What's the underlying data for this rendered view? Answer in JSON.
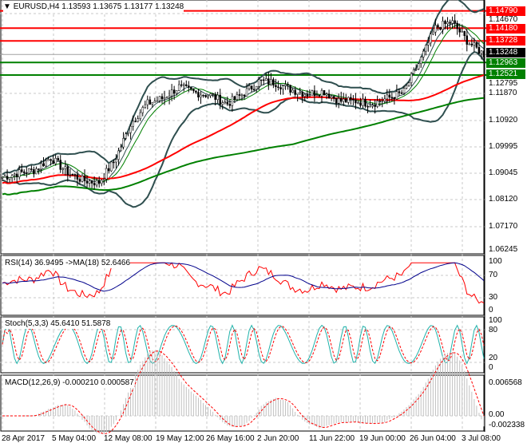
{
  "header": {
    "symbol": "EURUSD,H4",
    "ohlc": "1.13593 1.13675 1.13177 1.13248"
  },
  "price_axis": {
    "ticks": [
      "1.14670",
      "1.12795",
      "1.11870",
      "1.10920",
      "1.09995",
      "1.09045",
      "1.08120",
      "1.07170",
      "1.06245"
    ]
  },
  "price_tags": [
    {
      "value": "1.14790",
      "color": "#ff0000"
    },
    {
      "value": "1.14180",
      "color": "#ff0000"
    },
    {
      "value": "1.13728",
      "color": "#ff0000"
    },
    {
      "value": "1.13248",
      "color": "#000000"
    },
    {
      "value": "1.12963",
      "color": "#008000"
    },
    {
      "value": "1.12521",
      "color": "#008000"
    }
  ],
  "rsi": {
    "label": "RSI(14) 36.9495  ->MA(18) 52.6466",
    "ticks": [
      "100",
      "70",
      "30",
      "0"
    ]
  },
  "stoch": {
    "label": "Stoch(5,3,3) 45.6410 51.5878",
    "ticks": [
      "100",
      "80",
      "20",
      "0"
    ]
  },
  "macd": {
    "label": "MACD(12,26,9) -0.000210 0.000587",
    "ticks": [
      "0.006568",
      "0.00",
      "-0.002338"
    ]
  },
  "x_labels": [
    "28 Apr 2017",
    "5 May 04:00",
    "12 May 08:00",
    "19 May 12:00",
    "26 May 16:00",
    "2 Jun 20:00",
    "11 Jun 22:00",
    "19 Jun 00:00",
    "26 Jun 04:00",
    "3 Jul 08:00"
  ],
  "chart_data": {
    "type": "candlestick",
    "title": "EURUSD,H4",
    "ylim": [
      1.06245,
      1.1479
    ],
    "x": [
      "28 Apr 2017",
      "",
      "",
      "5 May 04:00",
      "",
      "",
      "12 May 08:00",
      "",
      "",
      "19 May 12:00",
      "",
      "",
      "26 May 16:00",
      "",
      "",
      "2 Jun 20:00",
      "",
      "",
      "11 Jun 22:00",
      "",
      "",
      "19 Jun 00:00",
      "",
      "",
      "26 Jun 04:00",
      "",
      "",
      "",
      "",
      "3 Jul 08:00",
      ""
    ],
    "close": [
      1.089,
      1.0905,
      1.0915,
      1.096,
      1.091,
      1.088,
      1.087,
      1.095,
      1.108,
      1.115,
      1.117,
      1.121,
      1.119,
      1.118,
      1.115,
      1.1185,
      1.123,
      1.1225,
      1.12,
      1.1185,
      1.1195,
      1.116,
      1.116,
      1.115,
      1.117,
      1.119,
      1.13,
      1.142,
      1.144,
      1.137,
      1.1325
    ],
    "horizontal_levels": [
      1.1479,
      1.1418,
      1.13728,
      1.12963,
      1.12521
    ],
    "colors": {
      "ma_fast": "#ff0000",
      "ma_slow": "#008000",
      "bands": "#2f4f4f",
      "rsi": "#ff0000",
      "rsi_ma": "#00008b",
      "stoch_main": "#20b2aa",
      "stoch_signal": "#ff0000",
      "macd_hist": "#c0c0c0",
      "macd_signal": "#ff0000"
    }
  }
}
